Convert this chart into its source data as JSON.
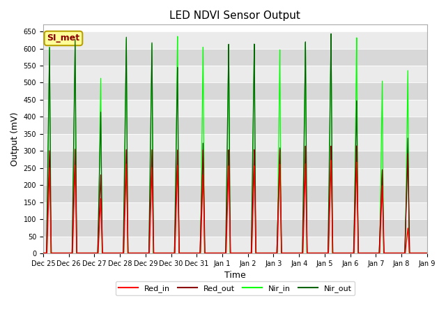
{
  "title": "LED NDVI Sensor Output",
  "xlabel": "Time",
  "ylabel": "Output (mV)",
  "ylim": [
    0,
    670
  ],
  "yticks": [
    0,
    50,
    100,
    150,
    200,
    250,
    300,
    350,
    400,
    450,
    500,
    550,
    600,
    650
  ],
  "x_tick_labels": [
    "Dec 25",
    "Dec 26",
    "Dec 27",
    "Dec 28",
    "Dec 29",
    "Dec 30",
    "Dec 31",
    "Jan 1",
    "Jan 2",
    "Jan 3",
    "Jan 4",
    "Jan 5",
    "Jan 6",
    "Jan 7",
    "Jan 8",
    "Jan 9"
  ],
  "legend_labels": [
    "Red_in",
    "Red_out",
    "Nir_in",
    "Nir_out"
  ],
  "legend_colors": [
    "#ff0000",
    "#8b0000",
    "#00ff00",
    "#006400"
  ],
  "bg_color_light": "#ebebeb",
  "bg_color_dark": "#d8d8d8",
  "annotation_text": "SI_met",
  "annotation_bg": "#ffff99",
  "annotation_border": "#b8a000",
  "annotation_text_color": "#8b0000",
  "num_days": 15,
  "spike_centers": [
    0.25,
    1.25,
    2.25,
    3.25,
    4.25,
    5.25,
    6.25,
    7.25,
    8.25,
    9.25,
    10.25,
    11.25,
    12.25,
    13.25,
    14.25
  ],
  "red_in_peaks": [
    250,
    258,
    160,
    263,
    253,
    260,
    232,
    258,
    258,
    262,
    263,
    273,
    267,
    198,
    73
  ],
  "red_out_peaks": [
    300,
    305,
    230,
    305,
    305,
    305,
    305,
    305,
    305,
    305,
    315,
    315,
    315,
    245,
    292
  ],
  "nir_in_peaks": [
    603,
    625,
    515,
    633,
    620,
    643,
    610,
    614,
    614,
    600,
    619,
    643,
    633,
    505,
    535
  ],
  "nir_out_peaks": [
    603,
    627,
    415,
    637,
    622,
    550,
    325,
    617,
    617,
    310,
    622,
    645,
    447,
    243,
    337
  ]
}
